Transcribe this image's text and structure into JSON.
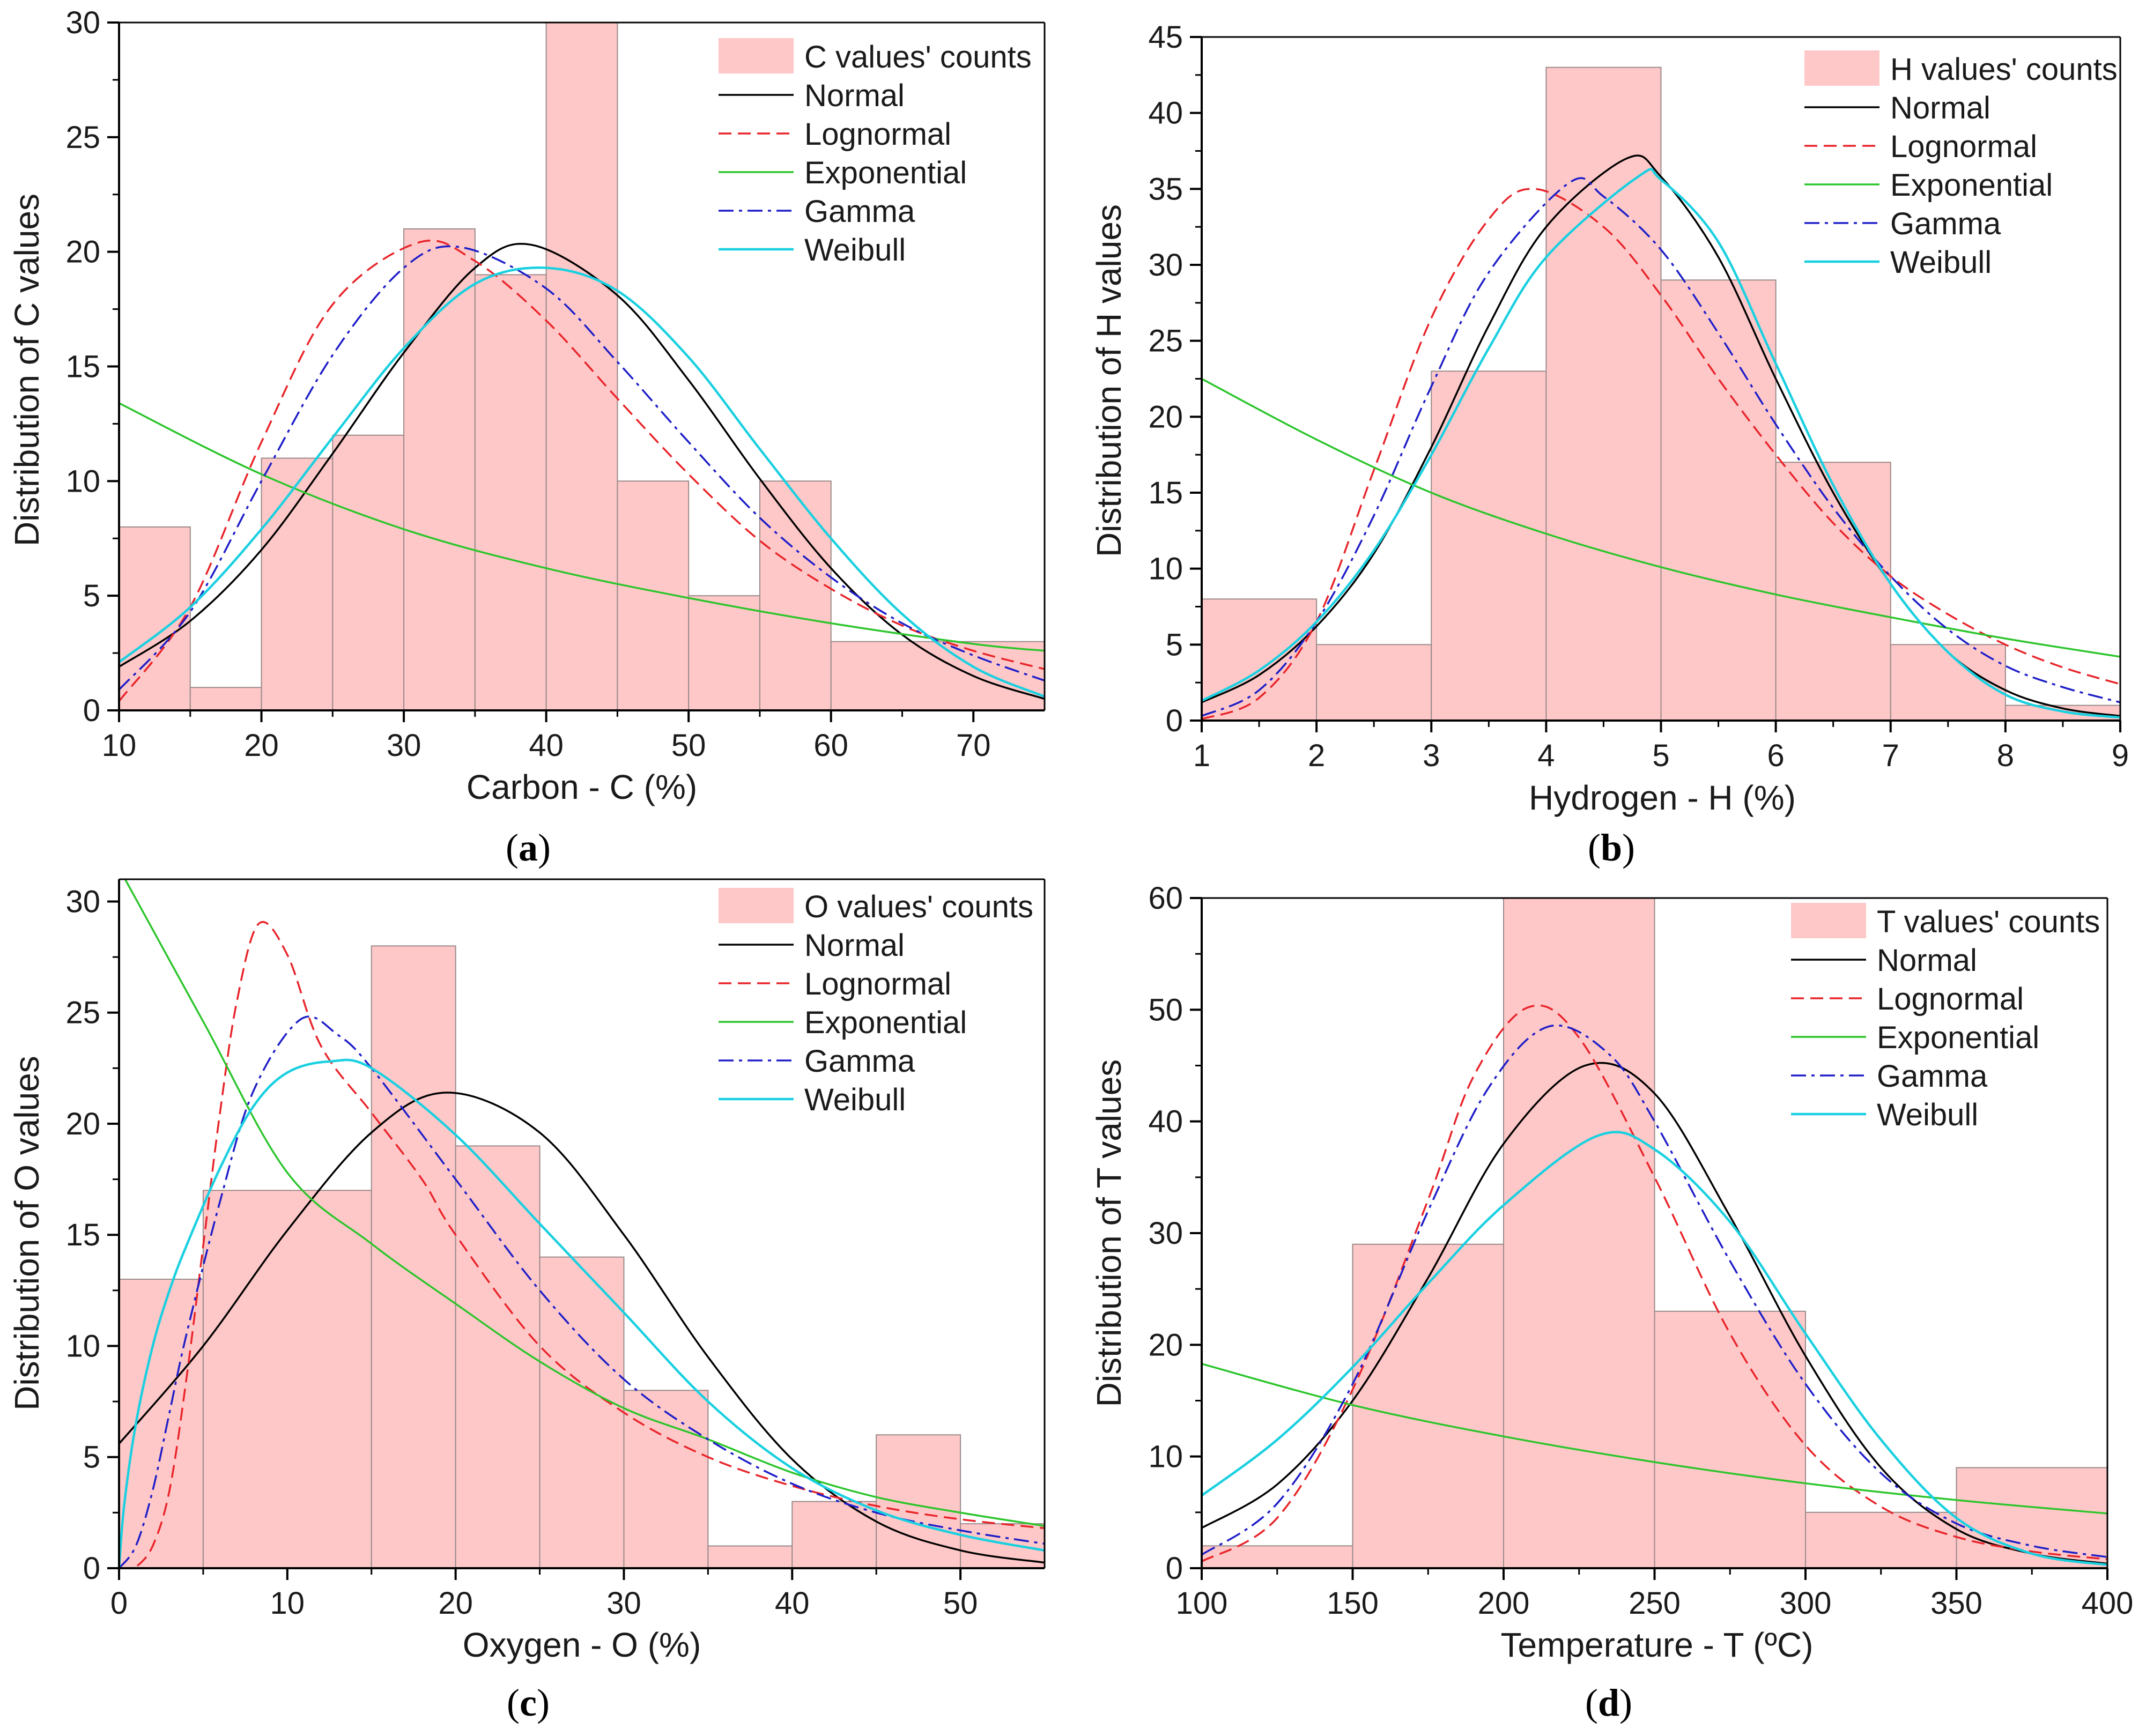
{
  "colors": {
    "bar_fill": "#ffc8c8",
    "bar_stroke": "#9a8a8a",
    "normal": "#000000",
    "lognormal": "#e8242a",
    "exponential": "#2cc52c",
    "gamma": "#1e1ec8",
    "weibull": "#1ad0e0"
  },
  "chart_data": [
    {
      "type": "bar",
      "panel_label": "a",
      "ylabel": "Distribution of C values",
      "xlabel": "Carbon - C (%)",
      "xlim": [
        10,
        75
      ],
      "ylim": [
        0,
        30
      ],
      "xticks": [
        "10",
        "20",
        "30",
        "40",
        "50",
        "60",
        "70"
      ],
      "xtick_values": [
        10,
        20,
        30,
        40,
        50,
        60,
        70
      ],
      "yticks": [
        "0",
        "5",
        "10",
        "15",
        "20",
        "25",
        "30"
      ],
      "ytick_values": [
        0,
        5,
        10,
        15,
        20,
        25,
        30
      ],
      "bins": [
        [
          10,
          15,
          8
        ],
        [
          15,
          20,
          1
        ],
        [
          20,
          25,
          11
        ],
        [
          25,
          30,
          12
        ],
        [
          30,
          35,
          21
        ],
        [
          35,
          40,
          19
        ],
        [
          40,
          45,
          30
        ],
        [
          45,
          50,
          10
        ],
        [
          50,
          55,
          5
        ],
        [
          55,
          60,
          10
        ],
        [
          60,
          75,
          3
        ]
      ],
      "legend": {
        "position": "top-right",
        "entries": [
          "C values' counts",
          "Normal",
          "Lognormal",
          "Exponential",
          "Gamma",
          "Weibull"
        ]
      },
      "series": [
        {
          "name": "Normal",
          "x": [
            10,
            15,
            20,
            25,
            30,
            35,
            39,
            45,
            50,
            55,
            60,
            65,
            70,
            75
          ],
          "y": [
            1.9,
            3.9,
            7.0,
            11.2,
            15.6,
            19.3,
            20.3,
            18.1,
            14.4,
            10.1,
            6.2,
            3.3,
            1.5,
            0.5
          ]
        },
        {
          "name": "Lognormal",
          "x": [
            10,
            15,
            20,
            25,
            31,
            35,
            40,
            45,
            50,
            55,
            60,
            65,
            70,
            75
          ],
          "y": [
            0.4,
            4.5,
            11.7,
            17.7,
            20.4,
            19.6,
            17.0,
            13.6,
            10.3,
            7.4,
            5.3,
            3.7,
            2.6,
            1.8
          ]
        },
        {
          "name": "Exponential",
          "x": [
            10,
            20,
            30,
            40,
            50,
            60,
            70,
            75
          ],
          "y": [
            13.4,
            10.3,
            7.9,
            6.2,
            4.9,
            3.8,
            2.9,
            2.6
          ]
        },
        {
          "name": "Gamma",
          "x": [
            10,
            15,
            20,
            25,
            30,
            34,
            40,
            45,
            50,
            55,
            60,
            65,
            70,
            75
          ],
          "y": [
            0.9,
            4.3,
            10.0,
            15.5,
            19.3,
            20.2,
            18.4,
            15.2,
            11.7,
            8.4,
            5.8,
            3.8,
            2.4,
            1.3
          ]
        },
        {
          "name": "Weibull",
          "x": [
            10,
            15,
            20,
            25,
            30,
            35,
            40,
            45,
            50,
            55,
            60,
            65,
            70,
            75
          ],
          "y": [
            2.1,
            4.5,
            7.9,
            11.9,
            15.8,
            18.6,
            19.3,
            18.3,
            15.4,
            11.4,
            7.5,
            4.2,
            1.9,
            0.6
          ]
        }
      ]
    },
    {
      "type": "bar",
      "panel_label": "b",
      "ylabel": "Distribution of H values",
      "xlabel": "Hydrogen - H (%)",
      "xlim": [
        1,
        9
      ],
      "ylim": [
        0,
        45
      ],
      "xticks": [
        "1",
        "2",
        "3",
        "4",
        "5",
        "6",
        "7",
        "8",
        "9"
      ],
      "xtick_values": [
        1,
        2,
        3,
        4,
        5,
        6,
        7,
        8,
        9
      ],
      "yticks": [
        "0",
        "5",
        "10",
        "15",
        "20",
        "25",
        "30",
        "35",
        "40",
        "45"
      ],
      "ytick_values": [
        0,
        5,
        10,
        15,
        20,
        25,
        30,
        35,
        40,
        45
      ],
      "bins": [
        [
          1,
          2,
          8
        ],
        [
          2,
          3,
          5
        ],
        [
          3,
          4,
          23
        ],
        [
          4,
          5,
          43
        ],
        [
          5,
          6,
          29
        ],
        [
          6,
          7,
          17
        ],
        [
          7,
          8,
          5
        ],
        [
          8,
          9,
          1
        ]
      ],
      "legend": {
        "position": "top-right",
        "entries": [
          "H values' counts",
          "Normal",
          "Lognormal",
          "Exponential",
          "Gamma",
          "Weibull"
        ]
      },
      "series": [
        {
          "name": "Normal",
          "x": [
            1,
            1.5,
            2,
            2.5,
            3,
            3.5,
            4,
            4.7,
            5,
            5.5,
            6,
            6.5,
            7,
            7.5,
            8,
            8.5,
            9
          ],
          "y": [
            1.2,
            3.0,
            6.2,
            11.0,
            18.0,
            26.0,
            32.5,
            37.0,
            35.8,
            30.5,
            22.5,
            15.0,
            9.0,
            4.5,
            2.0,
            0.8,
            0.3
          ]
        },
        {
          "name": "Lognormal",
          "x": [
            1,
            1.5,
            2,
            2.5,
            3,
            3.5,
            3.9,
            4.5,
            5,
            5.5,
            6,
            6.5,
            7,
            7.5,
            8,
            8.5,
            9
          ],
          "y": [
            0.1,
            1.5,
            6.5,
            16.5,
            26.5,
            33.0,
            35.0,
            32.5,
            28.0,
            22.5,
            17.5,
            13.0,
            9.5,
            7.0,
            5.0,
            3.5,
            2.4
          ]
        },
        {
          "name": "Exponential",
          "x": [
            1,
            2,
            3,
            4,
            5,
            6,
            7,
            8,
            9
          ],
          "y": [
            22.5,
            18.5,
            15.0,
            12.3,
            10.1,
            8.3,
            6.8,
            5.4,
            4.2
          ]
        },
        {
          "name": "Gamma",
          "x": [
            1,
            1.5,
            2,
            2.5,
            3,
            3.5,
            4.2,
            4.5,
            5,
            5.5,
            6,
            6.5,
            7,
            7.5,
            8,
            8.5,
            9
          ],
          "y": [
            0.3,
            2.0,
            6.5,
            13.5,
            22.0,
            29.5,
            35.4,
            34.5,
            31.0,
            25.5,
            19.5,
            14.0,
            9.5,
            6.0,
            3.6,
            2.2,
            1.2
          ]
        },
        {
          "name": "Weibull",
          "x": [
            1,
            1.5,
            2,
            2.5,
            3,
            3.5,
            4,
            4.8,
            5,
            5.5,
            6,
            6.5,
            7,
            7.5,
            8,
            8.5,
            9
          ],
          "y": [
            1.3,
            3.3,
            6.5,
            11.2,
            17.5,
            24.5,
            30.5,
            35.8,
            35.6,
            31.5,
            23.5,
            15.5,
            9.0,
            4.5,
            1.7,
            0.6,
            0.2
          ]
        }
      ]
    },
    {
      "type": "bar",
      "panel_label": "c",
      "ylabel": "Distribution of O values",
      "xlabel": "Oxygen - O (%)",
      "xlim": [
        0,
        55
      ],
      "ylim": [
        0,
        31
      ],
      "xticks": [
        "0",
        "10",
        "20",
        "30",
        "40",
        "50"
      ],
      "xtick_values": [
        0,
        10,
        20,
        30,
        40,
        50
      ],
      "yticks": [
        "0",
        "5",
        "10",
        "15",
        "20",
        "25",
        "30"
      ],
      "ytick_values": [
        0,
        5,
        10,
        15,
        20,
        25,
        30
      ],
      "bins": [
        [
          0,
          5,
          13
        ],
        [
          5,
          15,
          17
        ],
        [
          15,
          20,
          28
        ],
        [
          20,
          25,
          19
        ],
        [
          25,
          30,
          14
        ],
        [
          30,
          35,
          8
        ],
        [
          35,
          40,
          1
        ],
        [
          40,
          45,
          3
        ],
        [
          45,
          50,
          6
        ],
        [
          50,
          55,
          2
        ]
      ],
      "legend": {
        "position": "top-right",
        "entries": [
          "O values' counts",
          "Normal",
          "Lognormal",
          "Exponential",
          "Gamma",
          "Weibull"
        ]
      },
      "series": [
        {
          "name": "Normal",
          "x": [
            0,
            5,
            10,
            15,
            19.5,
            25,
            30,
            35,
            40,
            45,
            50,
            55
          ],
          "y": [
            5.6,
            10.0,
            15.2,
            19.6,
            21.4,
            19.6,
            15.0,
            9.5,
            4.9,
            2.1,
            0.8,
            0.25
          ]
        },
        {
          "name": "Lognormal",
          "x": [
            0,
            0.5,
            1,
            2,
            3,
            4,
            5,
            6,
            7,
            8.3,
            10,
            12,
            15,
            18,
            20,
            25,
            30,
            35,
            40,
            45,
            50,
            55
          ],
          "y": [
            0,
            0,
            0.05,
            1.0,
            3.5,
            8.5,
            14.5,
            20.5,
            25.5,
            29.0,
            27.6,
            23.5,
            20.5,
            17.5,
            15.0,
            10.0,
            7.0,
            5.0,
            3.7,
            2.8,
            2.2,
            1.8
          ]
        },
        {
          "name": "Exponential",
          "x": [
            0,
            5,
            10,
            15,
            20,
            25,
            30,
            35,
            40,
            45,
            50,
            55
          ],
          "y": [
            31.5,
            24.6,
            17.8,
            14.6,
            11.9,
            9.3,
            7.2,
            5.8,
            4.3,
            3.2,
            2.5,
            1.9
          ]
        },
        {
          "name": "Gamma",
          "x": [
            0,
            1,
            2,
            3,
            4,
            6,
            8,
            10.8,
            13,
            15,
            20,
            25,
            30,
            35,
            40,
            45,
            50,
            55
          ],
          "y": [
            0,
            1.0,
            3.5,
            7.0,
            10.5,
            16.5,
            21.5,
            24.7,
            24.0,
            22.5,
            17.5,
            12.5,
            8.5,
            5.8,
            3.8,
            2.5,
            1.7,
            1.1
          ]
        },
        {
          "name": "Weibull",
          "x": [
            0,
            0.3,
            1,
            2,
            3,
            4,
            6,
            8,
            10,
            12.5,
            15,
            20,
            25,
            30,
            35,
            40,
            45,
            50,
            55
          ],
          "y": [
            0,
            2.8,
            6.5,
            10.0,
            12.5,
            14.5,
            18.0,
            20.8,
            22.3,
            22.8,
            22.5,
            19.5,
            15.5,
            11.5,
            7.5,
            4.5,
            2.6,
            1.5,
            0.8
          ]
        }
      ]
    },
    {
      "type": "bar",
      "panel_label": "d",
      "ylabel": "Distribution of T values",
      "xlabel": "Temperature - T (ºC)",
      "xlim": [
        100,
        400
      ],
      "ylim": [
        0,
        60
      ],
      "xticks": [
        "100",
        "150",
        "200",
        "250",
        "300",
        "350",
        "400"
      ],
      "xtick_values": [
        100,
        150,
        200,
        250,
        300,
        350,
        400
      ],
      "yticks": [
        "0",
        "10",
        "20",
        "30",
        "40",
        "50",
        "60"
      ],
      "ytick_values": [
        0,
        10,
        20,
        30,
        40,
        50,
        60
      ],
      "bins": [
        [
          100,
          150,
          2
        ],
        [
          150,
          200,
          29
        ],
        [
          200,
          250,
          60
        ],
        [
          250,
          300,
          23
        ],
        [
          300,
          350,
          5
        ],
        [
          350,
          400,
          9
        ]
      ],
      "legend": {
        "position": "top-right",
        "entries": [
          "T values' counts",
          "Normal",
          "Lognormal",
          "Exponential",
          "Gamma",
          "Weibull"
        ]
      },
      "series": [
        {
          "name": "Normal",
          "x": [
            100,
            125,
            150,
            175,
            200,
            227,
            250,
            275,
            300,
            325,
            350,
            375,
            400
          ],
          "y": [
            3.6,
            7.5,
            15.0,
            26.0,
            38.0,
            45.0,
            42.5,
            31.5,
            19.0,
            9.0,
            3.5,
            1.3,
            0.4
          ]
        },
        {
          "name": "Lognormal",
          "x": [
            100,
            125,
            150,
            175,
            190,
            208,
            225,
            250,
            275,
            300,
            325,
            350,
            375,
            400
          ],
          "y": [
            0.6,
            4.5,
            16.0,
            33.0,
            44.0,
            50.2,
            47.5,
            35.0,
            21.0,
            11.0,
            5.5,
            2.8,
            1.5,
            0.8
          ]
        },
        {
          "name": "Exponential",
          "x": [
            100,
            150,
            200,
            250,
            300,
            350,
            400
          ],
          "y": [
            18.3,
            14.6,
            11.8,
            9.5,
            7.6,
            6.1,
            4.9
          ]
        },
        {
          "name": "Gamma",
          "x": [
            100,
            125,
            150,
            175,
            195,
            215,
            235,
            250,
            275,
            300,
            325,
            350,
            375,
            400
          ],
          "y": [
            1.2,
            5.8,
            16.5,
            32.0,
            43.0,
            48.5,
            46.0,
            40.0,
            27.5,
            16.5,
            8.5,
            4.0,
            2.0,
            1.0
          ]
        },
        {
          "name": "Weibull",
          "x": [
            100,
            125,
            150,
            175,
            200,
            231,
            250,
            275,
            300,
            325,
            350,
            375,
            400
          ],
          "y": [
            6.5,
            11.5,
            18.0,
            25.5,
            32.5,
            38.7,
            37.5,
            31.0,
            21.0,
            11.5,
            4.5,
            1.3,
            0.3
          ]
        }
      ]
    }
  ]
}
